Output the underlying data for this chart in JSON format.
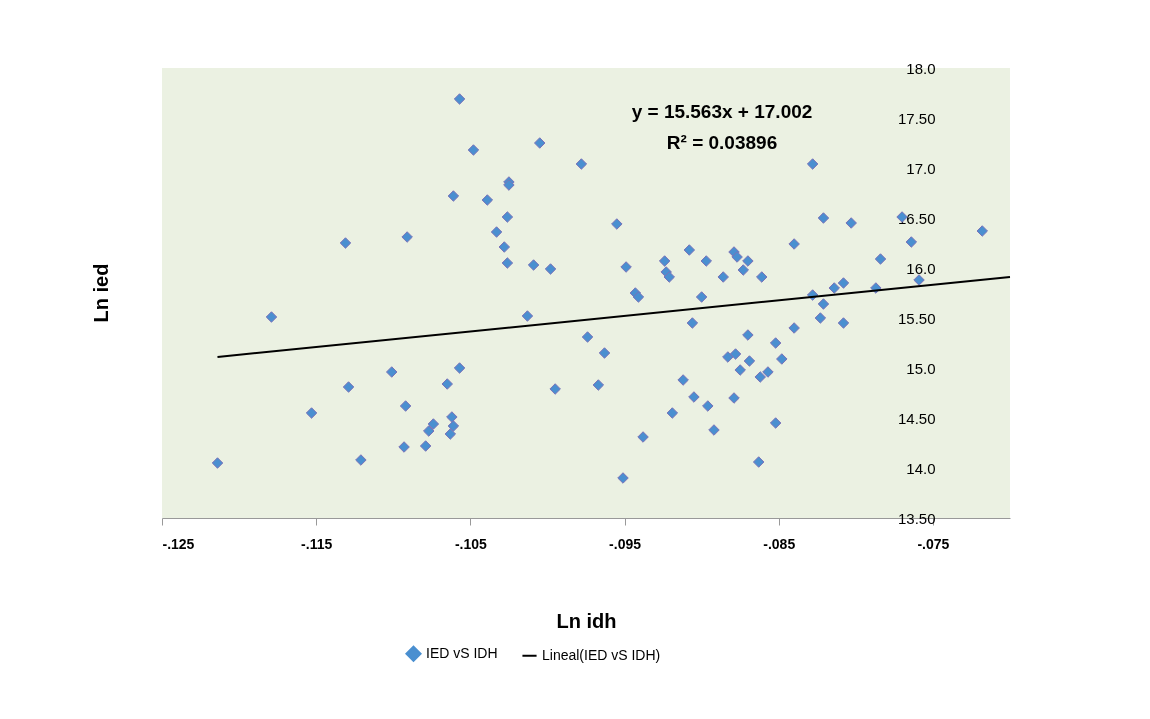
{
  "chart_data": {
    "type": "scatter",
    "xlabel": "Ln idh",
    "ylabel": "Ln ied",
    "annotations": [
      "y = 15.563x + 17.002",
      "R² = 0.03896"
    ],
    "xlim": [
      -0.125,
      -0.07
    ],
    "ylim": [
      13.5,
      18.0
    ],
    "xticks": [
      {
        "value": -0.125,
        "label": "-.125"
      },
      {
        "value": -0.115,
        "label": "-.115"
      },
      {
        "value": -0.105,
        "label": "-.105"
      },
      {
        "value": -0.095,
        "label": "-.095"
      },
      {
        "value": -0.085,
        "label": "-.085"
      },
      {
        "value": -0.075,
        "label": "-.075"
      }
    ],
    "yticks": [
      {
        "value": 13.5,
        "label": "13.50"
      },
      {
        "value": 14.0,
        "label": "14.0"
      },
      {
        "value": 14.5,
        "label": "14.50"
      },
      {
        "value": 15.0,
        "label": "15.0"
      },
      {
        "value": 15.5,
        "label": "15.50"
      },
      {
        "value": 16.0,
        "label": "16.0"
      },
      {
        "value": 16.5,
        "label": "16.50"
      },
      {
        "value": 17.0,
        "label": "17.0"
      },
      {
        "value": 17.5,
        "label": "17.50"
      },
      {
        "value": 18.0,
        "label": "18.0"
      }
    ],
    "grid": false,
    "legend": "bottom",
    "series": [
      {
        "name": "IED vS IDH",
        "marker": "diamond",
        "color": "#4a8fd0",
        "x": [
          -0.1057,
          -0.1048,
          -0.1005,
          -0.0978,
          -0.1025,
          -0.1025,
          -0.1061,
          -0.1039,
          -0.1026,
          -0.1033,
          -0.1028,
          -0.1026,
          -0.1009,
          -0.0998,
          -0.1131,
          -0.1091,
          -0.0828,
          -0.0955,
          -0.0949,
          -0.0943,
          -0.0941,
          -0.0924,
          -0.0923,
          -0.0921,
          -0.0908,
          -0.0897,
          -0.09,
          -0.0886,
          -0.0879,
          -0.0877,
          -0.087,
          -0.0873,
          -0.0861,
          -0.084,
          -0.0821,
          -0.0803,
          -0.077,
          -0.0764,
          -0.0784,
          -0.0718,
          -0.0759,
          -0.0828,
          -0.0814,
          -0.0808,
          -0.0787,
          -0.0821,
          -0.0823,
          -0.0808,
          -0.084,
          -0.0906,
          -0.0974,
          -0.0963,
          -0.0967,
          -0.087,
          -0.0852,
          -0.0883,
          -0.0878,
          -0.0869,
          -0.0875,
          -0.0848,
          -0.0862,
          -0.0857,
          -0.0912,
          -0.0905,
          -0.0896,
          -0.0879,
          -0.0919,
          -0.0892,
          -0.0938,
          -0.0852,
          -0.0863,
          -0.0951,
          -0.1179,
          -0.1013,
          -0.1214,
          -0.1153,
          -0.1129,
          -0.1101,
          -0.1057,
          -0.1065,
          -0.1092,
          -0.1074,
          -0.1077,
          -0.1062,
          -0.1061,
          -0.1063,
          -0.1093,
          -0.1079,
          -0.1121,
          -0.0995
        ],
        "values": [
          17.69,
          17.18,
          17.25,
          17.04,
          16.86,
          16.83,
          16.72,
          16.68,
          16.51,
          16.36,
          16.21,
          16.05,
          16.03,
          15.99,
          16.25,
          16.31,
          17.04,
          16.44,
          16.01,
          15.75,
          15.71,
          16.07,
          15.96,
          15.91,
          16.18,
          16.07,
          15.71,
          15.91,
          16.16,
          16.11,
          16.07,
          15.98,
          15.91,
          16.24,
          16.5,
          16.45,
          16.51,
          16.26,
          16.09,
          16.37,
          15.88,
          15.73,
          15.8,
          15.85,
          15.8,
          15.64,
          15.5,
          15.45,
          15.4,
          15.45,
          15.31,
          15.15,
          14.83,
          15.33,
          15.25,
          15.11,
          15.14,
          15.07,
          14.98,
          15.09,
          14.91,
          14.96,
          14.88,
          14.71,
          14.62,
          14.7,
          14.55,
          14.38,
          14.31,
          14.45,
          14.06,
          13.9,
          15.51,
          15.52,
          14.05,
          14.55,
          14.81,
          14.96,
          15.0,
          14.84,
          14.62,
          14.44,
          14.37,
          14.51,
          14.42,
          14.34,
          14.21,
          14.22,
          14.08,
          14.79
        ]
      },
      {
        "name": "Lineal(IED vS IDH)",
        "type": "line",
        "line_style": "solid",
        "color": "#000000",
        "x": [
          -0.1214,
          -0.07
        ],
        "values": [
          15.11,
          15.91
        ]
      }
    ]
  }
}
